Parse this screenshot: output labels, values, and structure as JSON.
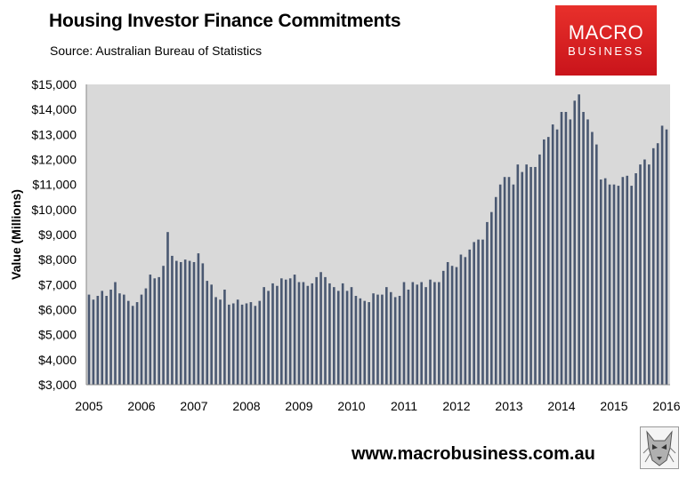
{
  "header": {
    "title": "Housing Investor Finance Commitments",
    "subtitle": "Source: Australian Bureau of Statistics"
  },
  "logo": {
    "line1": "MACRO",
    "line2": "BUSINESS",
    "bg_color": "#d7191c",
    "icon": "wolf-icon"
  },
  "footer": {
    "url": "www.macrobusiness.com.au"
  },
  "chart_data": {
    "type": "bar",
    "title": "Housing Investor Finance Commitments",
    "ylabel": "Value (Millions)",
    "xlabel": "",
    "ylim": [
      3000,
      15000
    ],
    "yticks": [
      "$3,000",
      "$4,000",
      "$5,000",
      "$6,000",
      "$7,000",
      "$8,000",
      "$9,000",
      "$10,000",
      "$11,000",
      "$12,000",
      "$13,000",
      "$14,000",
      "$15,000"
    ],
    "xticks": [
      "2005",
      "2006",
      "2007",
      "2008",
      "2009",
      "2010",
      "2011",
      "2012",
      "2013",
      "2014",
      "2015",
      "2016"
    ],
    "grid": false,
    "plot_bg": "#d9d9d9",
    "bar_color": "#4a5871",
    "x_start": "2005-01",
    "x_end": "2016-01",
    "categories": [
      "2005-01",
      "2005-02",
      "2005-03",
      "2005-04",
      "2005-05",
      "2005-06",
      "2005-07",
      "2005-08",
      "2005-09",
      "2005-10",
      "2005-11",
      "2005-12",
      "2006-01",
      "2006-02",
      "2006-03",
      "2006-04",
      "2006-05",
      "2006-06",
      "2006-07",
      "2006-08",
      "2006-09",
      "2006-10",
      "2006-11",
      "2006-12",
      "2007-01",
      "2007-02",
      "2007-03",
      "2007-04",
      "2007-05",
      "2007-06",
      "2007-07",
      "2007-08",
      "2007-09",
      "2007-10",
      "2007-11",
      "2007-12",
      "2008-01",
      "2008-02",
      "2008-03",
      "2008-04",
      "2008-05",
      "2008-06",
      "2008-07",
      "2008-08",
      "2008-09",
      "2008-10",
      "2008-11",
      "2008-12",
      "2009-01",
      "2009-02",
      "2009-03",
      "2009-04",
      "2009-05",
      "2009-06",
      "2009-07",
      "2009-08",
      "2009-09",
      "2009-10",
      "2009-11",
      "2009-12",
      "2010-01",
      "2010-02",
      "2010-03",
      "2010-04",
      "2010-05",
      "2010-06",
      "2010-07",
      "2010-08",
      "2010-09",
      "2010-10",
      "2010-11",
      "2010-12",
      "2011-01",
      "2011-02",
      "2011-03",
      "2011-04",
      "2011-05",
      "2011-06",
      "2011-07",
      "2011-08",
      "2011-09",
      "2011-10",
      "2011-11",
      "2011-12",
      "2012-01",
      "2012-02",
      "2012-03",
      "2012-04",
      "2012-05",
      "2012-06",
      "2012-07",
      "2012-08",
      "2012-09",
      "2012-10",
      "2012-11",
      "2012-12",
      "2013-01",
      "2013-02",
      "2013-03",
      "2013-04",
      "2013-05",
      "2013-06",
      "2013-07",
      "2013-08",
      "2013-09",
      "2013-10",
      "2013-11",
      "2013-12",
      "2014-01",
      "2014-02",
      "2014-03",
      "2014-04",
      "2014-05",
      "2014-06",
      "2014-07",
      "2014-08",
      "2014-09",
      "2014-10",
      "2014-11",
      "2014-12",
      "2015-01",
      "2015-02",
      "2015-03",
      "2015-04",
      "2015-05",
      "2015-06",
      "2015-07",
      "2015-08",
      "2015-09",
      "2015-10",
      "2015-11",
      "2015-12",
      "2016-01"
    ],
    "values": [
      6600,
      6400,
      6550,
      6750,
      6550,
      6800,
      7100,
      6650,
      6600,
      6350,
      6150,
      6300,
      6600,
      6850,
      7400,
      7250,
      7300,
      7750,
      9100,
      8150,
      7950,
      7900,
      8000,
      7950,
      7900,
      8250,
      7850,
      7150,
      7000,
      6500,
      6400,
      6800,
      6200,
      6250,
      6400,
      6200,
      6250,
      6300,
      6150,
      6350,
      6900,
      6750,
      7050,
      6950,
      7250,
      7200,
      7250,
      7400,
      7100,
      7100,
      6950,
      7050,
      7300,
      7500,
      7300,
      7050,
      6900,
      6750,
      7050,
      6750,
      6900,
      6550,
      6450,
      6350,
      6300,
      6650,
      6600,
      6600,
      6900,
      6700,
      6500,
      6550,
      7100,
      6800,
      7100,
      7000,
      7100,
      6900,
      7200,
      7100,
      7100,
      7550,
      7900,
      7750,
      7700,
      8200,
      8100,
      8400,
      8700,
      8800,
      8800,
      9500,
      9900,
      10500,
      11000,
      11300,
      11300,
      11000,
      11800,
      11500,
      11800,
      11700,
      11700,
      12200,
      12800,
      12900,
      13400,
      13200,
      13900,
      13900,
      13600,
      14350,
      14600,
      13900,
      13600,
      13100,
      12600,
      11200,
      11250,
      11000,
      11000,
      10950,
      11300,
      11350,
      10950,
      11450,
      11800,
      12000,
      11800,
      12450,
      12650,
      13350,
      13200
    ]
  }
}
